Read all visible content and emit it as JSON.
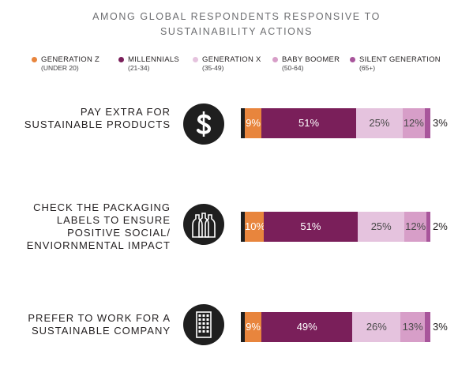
{
  "title": {
    "line1": "AMONG GLOBAL RESPONDENTS RESPONSIVE TO",
    "line2": "SUSTAINABILITY ACTIONS"
  },
  "legend": [
    {
      "name": "GENERATION Z",
      "sub": "(UNDER 20)",
      "color": "#e8853d"
    },
    {
      "name": "MILLENNIALS",
      "sub": "(21-34)",
      "color": "#7a1f5a"
    },
    {
      "name": "GENERATION X",
      "sub": "(35-49)",
      "color": "#e5c3de"
    },
    {
      "name": "BABY BOOMER",
      "sub": "(50-64)",
      "color": "#d79ec8"
    },
    {
      "name": "SILENT GENERATION",
      "sub": "(65+)",
      "color": "#a8559b"
    }
  ],
  "chart_data": {
    "type": "bar",
    "orientation": "horizontal",
    "stacked": true,
    "categories": [
      "PAY EXTRA FOR SUSTAINABLE PRODUCTS",
      "CHECK THE PACKAGING LABELS TO ENSURE POSITIVE SOCIAL/ ENVIORNMENTAL IMPACT",
      "PREFER TO WORK FOR A SUSTAINABLE COMPANY"
    ],
    "category_lines": [
      [
        "PAY EXTRA FOR",
        "SUSTAINABLE PRODUCTS"
      ],
      [
        "CHECK THE PACKAGING",
        "LABELS TO ENSURE",
        "POSITIVE SOCIAL/",
        "ENVIORNMENTAL IMPACT"
      ],
      [
        "PREFER TO WORK FOR A",
        "SUSTAINABLE COMPANY"
      ]
    ],
    "icons": [
      "dollar-icon",
      "bottles-icon",
      "building-icon"
    ],
    "series": [
      {
        "name": "GENERATION Z",
        "values": [
          9,
          10,
          9
        ],
        "labels": [
          "9%",
          "10%",
          "9%"
        ]
      },
      {
        "name": "MILLENNIALS",
        "values": [
          51,
          51,
          49
        ],
        "labels": [
          "51%",
          "51%",
          "49%"
        ]
      },
      {
        "name": "GENERATION X",
        "values": [
          25,
          25,
          26
        ],
        "labels": [
          "25%",
          "25%",
          "26%"
        ]
      },
      {
        "name": "BABY BOOMER",
        "values": [
          12,
          12,
          13
        ],
        "labels": [
          "12%",
          "12%",
          "13%"
        ]
      },
      {
        "name": "SILENT GENERATION",
        "values": [
          3,
          2,
          3
        ],
        "labels": [
          "3%",
          "2%",
          "3%"
        ]
      }
    ],
    "legend_position": "top",
    "grid": false
  }
}
